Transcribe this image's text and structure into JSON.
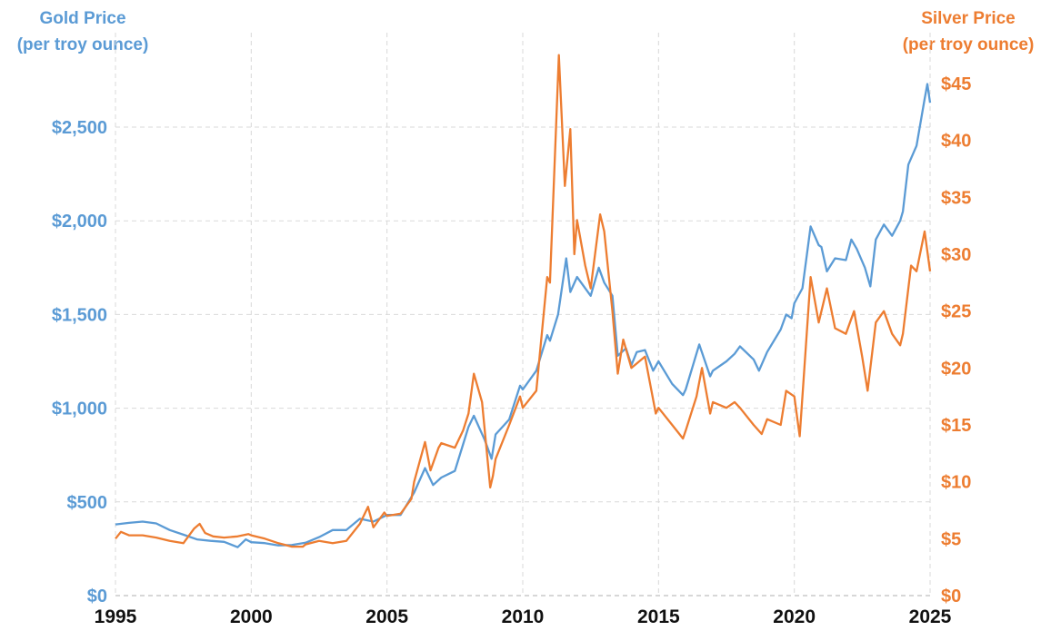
{
  "chart_data": {
    "type": "line",
    "y_left": {
      "label_lines": [
        "Gold Price",
        "(per troy ounce)"
      ],
      "ylim": [
        0,
        2750
      ],
      "ticks": [
        0,
        500,
        1000,
        1500,
        2000,
        2500
      ],
      "tick_labels": [
        "$0",
        "$500",
        "$1,000",
        "$1,500",
        "$2,000",
        "$2,500"
      ]
    },
    "y_right": {
      "label_lines": [
        "Silver Price",
        "(per troy ounce)"
      ],
      "ylim": [
        0,
        45
      ],
      "ticks": [
        0,
        5,
        10,
        15,
        20,
        25,
        30,
        35,
        40,
        45
      ],
      "tick_labels": [
        "$0",
        "$5",
        "$10",
        "$15",
        "$20",
        "$25",
        "$30",
        "$35",
        "$40",
        "$45"
      ]
    },
    "x": {
      "xlim": [
        1995,
        2025
      ],
      "ticks": [
        1995,
        2000,
        2005,
        2010,
        2015,
        2020,
        2025
      ],
      "tick_labels": [
        "1995",
        "2000",
        "2005",
        "2010",
        "2015",
        "2020",
        "2025"
      ]
    },
    "grid": true,
    "colors": {
      "gold": "#5b9bd5",
      "silver": "#ed7d31",
      "grid": "#d9d9d9",
      "xaxis": "#111111"
    },
    "series": [
      {
        "key": "gold",
        "axis": "left",
        "points": [
          [
            1995.0,
            380
          ],
          [
            1995.5,
            388
          ],
          [
            1996.0,
            395
          ],
          [
            1996.5,
            385
          ],
          [
            1997.0,
            350
          ],
          [
            1997.5,
            325
          ],
          [
            1998.0,
            300
          ],
          [
            1998.5,
            292
          ],
          [
            1999.0,
            287
          ],
          [
            1999.5,
            258
          ],
          [
            1999.8,
            300
          ],
          [
            2000.0,
            285
          ],
          [
            2000.5,
            280
          ],
          [
            2001.0,
            268
          ],
          [
            2001.5,
            270
          ],
          [
            2002.0,
            282
          ],
          [
            2002.5,
            312
          ],
          [
            2003.0,
            350
          ],
          [
            2003.5,
            350
          ],
          [
            2004.0,
            410
          ],
          [
            2004.5,
            395
          ],
          [
            2005.0,
            430
          ],
          [
            2005.5,
            430
          ],
          [
            2006.0,
            550
          ],
          [
            2006.4,
            680
          ],
          [
            2006.7,
            590
          ],
          [
            2007.0,
            630
          ],
          [
            2007.5,
            665
          ],
          [
            2008.0,
            900
          ],
          [
            2008.2,
            960
          ],
          [
            2008.6,
            830
          ],
          [
            2008.85,
            730
          ],
          [
            2009.0,
            860
          ],
          [
            2009.5,
            940
          ],
          [
            2009.9,
            1120
          ],
          [
            2010.0,
            1100
          ],
          [
            2010.5,
            1200
          ],
          [
            2010.9,
            1390
          ],
          [
            2011.0,
            1360
          ],
          [
            2011.3,
            1500
          ],
          [
            2011.6,
            1800
          ],
          [
            2011.75,
            1620
          ],
          [
            2012.0,
            1700
          ],
          [
            2012.5,
            1600
          ],
          [
            2012.8,
            1750
          ],
          [
            2013.0,
            1670
          ],
          [
            2013.3,
            1600
          ],
          [
            2013.5,
            1280
          ],
          [
            2013.8,
            1320
          ],
          [
            2014.0,
            1230
          ],
          [
            2014.2,
            1300
          ],
          [
            2014.5,
            1310
          ],
          [
            2014.8,
            1200
          ],
          [
            2015.0,
            1250
          ],
          [
            2015.5,
            1130
          ],
          [
            2015.9,
            1070
          ],
          [
            2016.0,
            1100
          ],
          [
            2016.5,
            1340
          ],
          [
            2016.9,
            1170
          ],
          [
            2017.0,
            1200
          ],
          [
            2017.5,
            1250
          ],
          [
            2017.8,
            1290
          ],
          [
            2018.0,
            1330
          ],
          [
            2018.5,
            1260
          ],
          [
            2018.7,
            1200
          ],
          [
            2019.0,
            1300
          ],
          [
            2019.5,
            1420
          ],
          [
            2019.7,
            1500
          ],
          [
            2019.9,
            1480
          ],
          [
            2020.0,
            1560
          ],
          [
            2020.3,
            1640
          ],
          [
            2020.6,
            1970
          ],
          [
            2020.9,
            1870
          ],
          [
            2021.0,
            1860
          ],
          [
            2021.2,
            1730
          ],
          [
            2021.5,
            1800
          ],
          [
            2021.9,
            1790
          ],
          [
            2022.1,
            1900
          ],
          [
            2022.3,
            1850
          ],
          [
            2022.6,
            1750
          ],
          [
            2022.8,
            1650
          ],
          [
            2023.0,
            1900
          ],
          [
            2023.3,
            1980
          ],
          [
            2023.6,
            1920
          ],
          [
            2023.9,
            2000
          ],
          [
            2024.0,
            2050
          ],
          [
            2024.2,
            2300
          ],
          [
            2024.5,
            2400
          ],
          [
            2024.8,
            2650
          ],
          [
            2024.9,
            2730
          ],
          [
            2025.0,
            2630
          ]
        ]
      },
      {
        "key": "silver",
        "axis": "right",
        "points": [
          [
            1995.0,
            5.0
          ],
          [
            1995.2,
            5.6
          ],
          [
            1995.5,
            5.3
          ],
          [
            1996.0,
            5.3
          ],
          [
            1996.5,
            5.1
          ],
          [
            1997.0,
            4.8
          ],
          [
            1997.5,
            4.6
          ],
          [
            1997.9,
            5.9
          ],
          [
            1998.1,
            6.3
          ],
          [
            1998.3,
            5.5
          ],
          [
            1998.6,
            5.2
          ],
          [
            1999.0,
            5.1
          ],
          [
            1999.5,
            5.2
          ],
          [
            1999.9,
            5.4
          ],
          [
            2000.0,
            5.3
          ],
          [
            2000.5,
            5.0
          ],
          [
            2001.0,
            4.6
          ],
          [
            2001.5,
            4.3
          ],
          [
            2001.9,
            4.3
          ],
          [
            2002.0,
            4.5
          ],
          [
            2002.5,
            4.8
          ],
          [
            2003.0,
            4.6
          ],
          [
            2003.5,
            4.8
          ],
          [
            2004.0,
            6.3
          ],
          [
            2004.3,
            7.8
          ],
          [
            2004.5,
            6.0
          ],
          [
            2004.9,
            7.3
          ],
          [
            2005.0,
            7.0
          ],
          [
            2005.5,
            7.2
          ],
          [
            2005.9,
            8.5
          ],
          [
            2006.0,
            10.0
          ],
          [
            2006.4,
            13.5
          ],
          [
            2006.6,
            11.0
          ],
          [
            2006.9,
            13.0
          ],
          [
            2007.0,
            13.4
          ],
          [
            2007.5,
            13.0
          ],
          [
            2007.8,
            14.5
          ],
          [
            2008.0,
            16.0
          ],
          [
            2008.2,
            19.5
          ],
          [
            2008.5,
            17.0
          ],
          [
            2008.8,
            9.5
          ],
          [
            2008.9,
            10.5
          ],
          [
            2009.0,
            12.0
          ],
          [
            2009.5,
            15.0
          ],
          [
            2009.9,
            17.5
          ],
          [
            2010.0,
            16.5
          ],
          [
            2010.5,
            18.0
          ],
          [
            2010.9,
            28.0
          ],
          [
            2011.0,
            27.5
          ],
          [
            2011.33,
            47.5
          ],
          [
            2011.55,
            36.0
          ],
          [
            2011.75,
            41.0
          ],
          [
            2011.9,
            30.0
          ],
          [
            2012.0,
            33.0
          ],
          [
            2012.3,
            29.0
          ],
          [
            2012.5,
            27.0
          ],
          [
            2012.85,
            33.5
          ],
          [
            2013.0,
            32.0
          ],
          [
            2013.3,
            25.0
          ],
          [
            2013.5,
            19.5
          ],
          [
            2013.7,
            22.5
          ],
          [
            2014.0,
            20.0
          ],
          [
            2014.5,
            21.0
          ],
          [
            2014.9,
            16.0
          ],
          [
            2015.0,
            16.5
          ],
          [
            2015.5,
            15.0
          ],
          [
            2015.9,
            13.8
          ],
          [
            2016.0,
            14.5
          ],
          [
            2016.4,
            17.5
          ],
          [
            2016.6,
            20.0
          ],
          [
            2016.9,
            16.0
          ],
          [
            2017.0,
            17.0
          ],
          [
            2017.5,
            16.5
          ],
          [
            2017.8,
            17.0
          ],
          [
            2018.0,
            16.5
          ],
          [
            2018.5,
            15.0
          ],
          [
            2018.8,
            14.2
          ],
          [
            2019.0,
            15.5
          ],
          [
            2019.5,
            15.0
          ],
          [
            2019.7,
            18.0
          ],
          [
            2020.0,
            17.5
          ],
          [
            2020.2,
            14.0
          ],
          [
            2020.6,
            28.0
          ],
          [
            2020.9,
            24.0
          ],
          [
            2021.0,
            25.0
          ],
          [
            2021.2,
            27.0
          ],
          [
            2021.5,
            23.5
          ],
          [
            2021.9,
            23.0
          ],
          [
            2022.2,
            25.0
          ],
          [
            2022.5,
            21.0
          ],
          [
            2022.7,
            18.0
          ],
          [
            2023.0,
            24.0
          ],
          [
            2023.3,
            25.0
          ],
          [
            2023.6,
            23.0
          ],
          [
            2023.9,
            22.0
          ],
          [
            2024.0,
            23.0
          ],
          [
            2024.3,
            29.0
          ],
          [
            2024.5,
            28.5
          ],
          [
            2024.8,
            32.0
          ],
          [
            2025.0,
            28.5
          ]
        ]
      }
    ]
  }
}
